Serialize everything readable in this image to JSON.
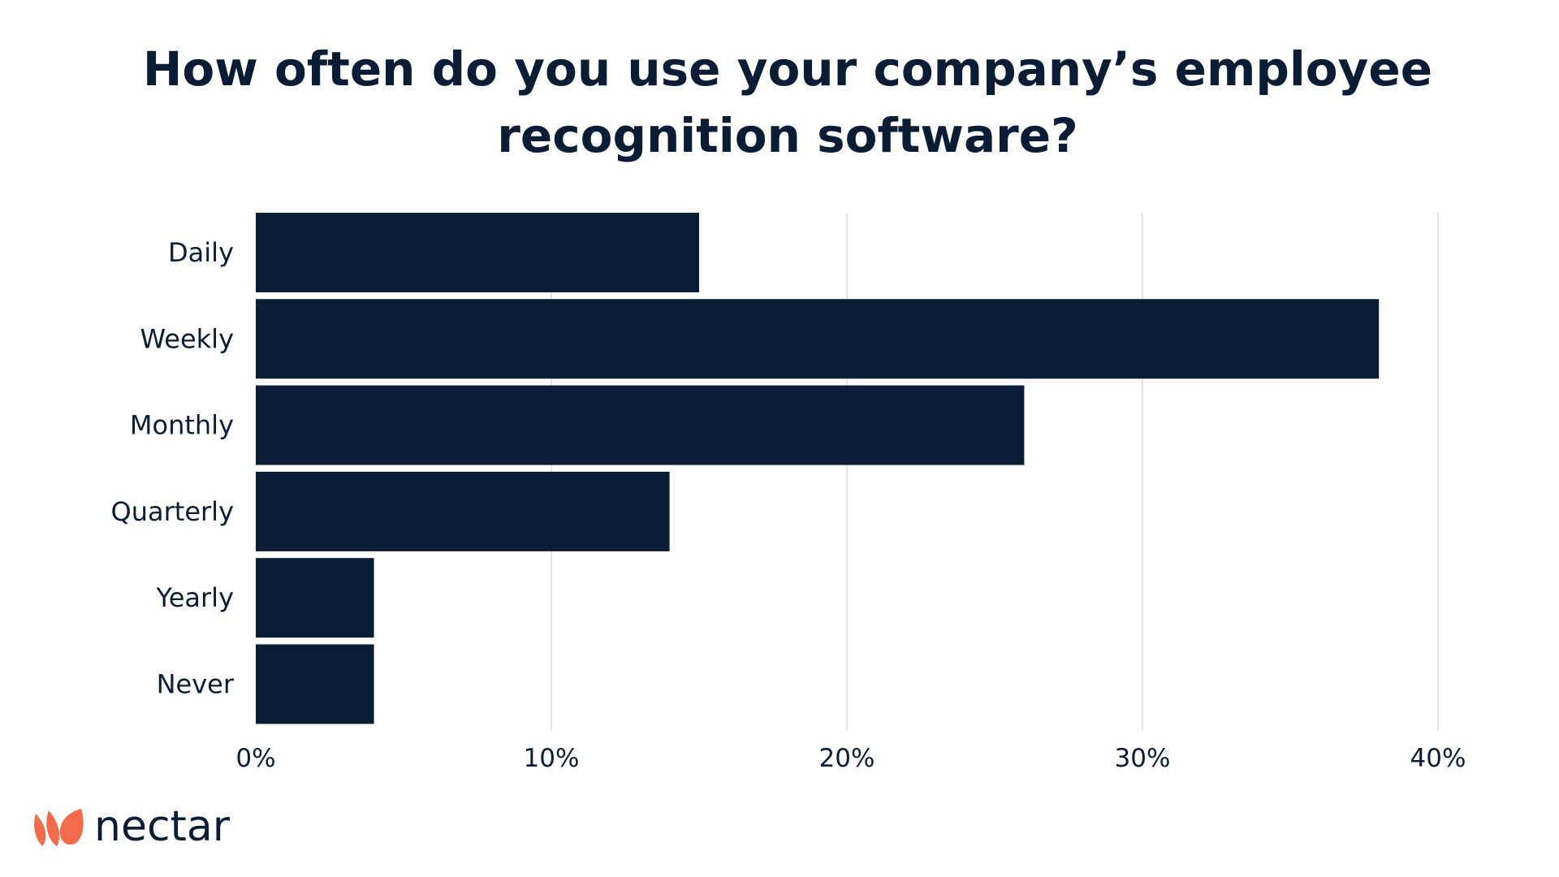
{
  "chart_data": {
    "type": "bar",
    "orientation": "horizontal",
    "title": "How often do you use your company’s employee recognition software?",
    "categories": [
      "Daily",
      "Weekly",
      "Monthly",
      "Quarterly",
      "Yearly",
      "Never"
    ],
    "values": [
      15,
      38,
      26,
      14,
      4,
      4
    ],
    "xlim": [
      0,
      40
    ],
    "xticks": [
      "0%",
      "10%",
      "20%",
      "30%",
      "40%"
    ],
    "xlabel": "",
    "ylabel": "",
    "grid": true,
    "bar_color": "#0b1d35",
    "grid_color": "#dcdcdc"
  },
  "brand": {
    "name": "nectar",
    "accent": "#f26b4a"
  }
}
